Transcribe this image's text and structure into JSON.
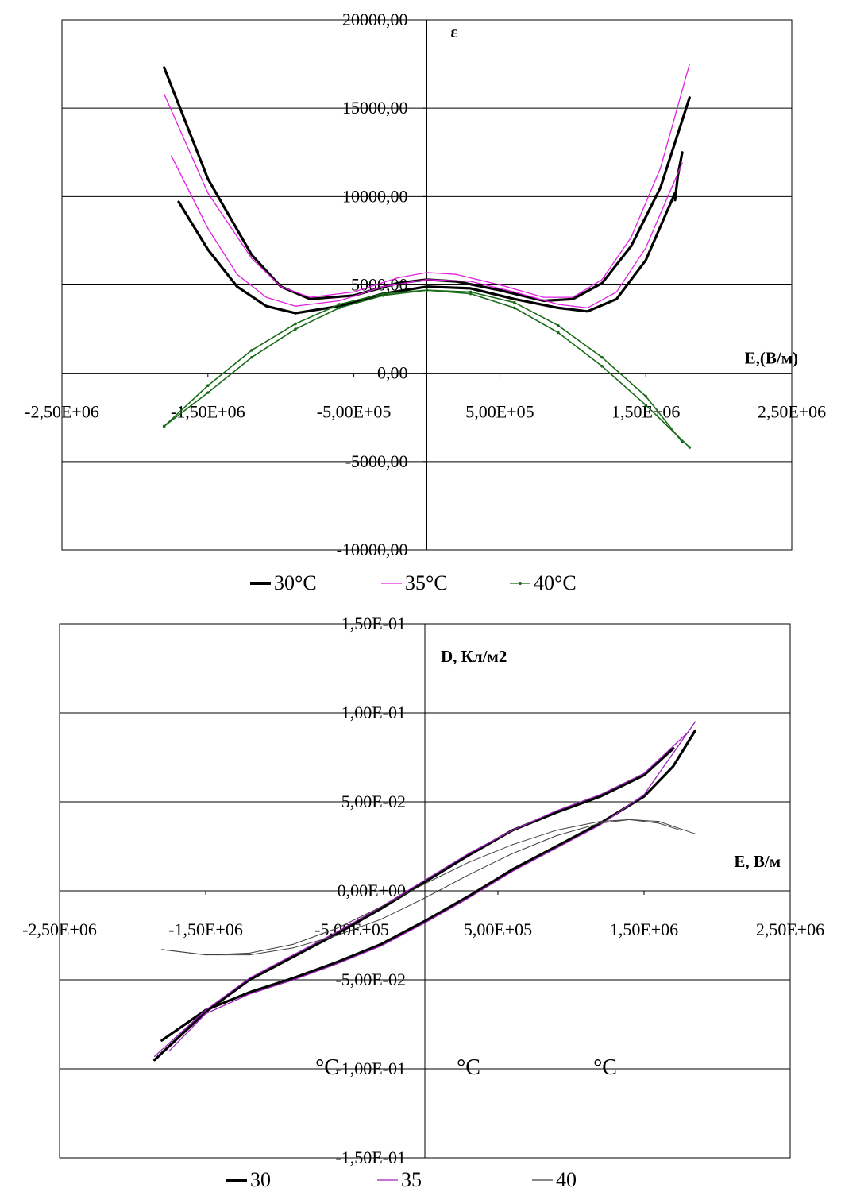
{
  "chart_data": [
    {
      "type": "line",
      "title": "",
      "xlabel": "E,(В/м)",
      "ylabel": "ε",
      "xlim": [
        -2500000,
        2500000
      ],
      "ylim": [
        -10000,
        20000
      ],
      "x_ticks": [
        -2500000,
        -1500000,
        -500000,
        500000,
        1500000,
        2500000
      ],
      "x_tick_labels": [
        "-2,50E+06",
        "-1,50E+06",
        "-5,00E+05",
        "5,00E+05",
        "1,50E+06",
        "2,50E+06"
      ],
      "y_ticks": [
        -10000,
        -5000,
        0,
        5000,
        10000,
        15000,
        20000
      ],
      "y_tick_labels": [
        "-10000,00",
        "-5000,00",
        "0,00",
        "5000,00",
        "10000,00",
        "15000,00",
        "20000,00"
      ],
      "grid": "horizontal",
      "legend_position": "bottom",
      "series": [
        {
          "name": "30°C",
          "color": "#000000",
          "style": "thick",
          "branches": [
            {
              "x": [
                -1800000,
                -1500000,
                -1200000,
                -1000000,
                -800000,
                -500000,
                -200000,
                0,
                200000,
                500000,
                800000,
                1000000,
                1200000,
                1400000,
                1600000,
                1800000
              ],
              "y": [
                17300,
                11000,
                6700,
                4900,
                4200,
                4400,
                5100,
                5300,
                5200,
                4700,
                4100,
                4200,
                5100,
                7200,
                10500,
                15600
              ]
            },
            {
              "x": [
                -1700000,
                -1500000,
                -1300000,
                -1100000,
                -900000,
                -600000,
                -300000,
                0,
                300000,
                600000,
                900000,
                1100000,
                1300000,
                1500000,
                1700000
              ],
              "y": [
                9700,
                7000,
                4900,
                3800,
                3400,
                3800,
                4500,
                4900,
                4800,
                4200,
                3700,
                3500,
                4200,
                6400,
                10200
              ]
            },
            {
              "x": [
                1700000,
                1720000,
                1750000
              ],
              "y": [
                9800,
                11200,
                12500
              ]
            }
          ]
        },
        {
          "name": "35°C",
          "color": "#e020e0",
          "style": "thin",
          "branches": [
            {
              "x": [
                -1800000,
                -1500000,
                -1200000,
                -1000000,
                -800000,
                -500000,
                -200000,
                0,
                200000,
                500000,
                800000,
                1000000,
                1200000,
                1400000,
                1600000,
                1800000
              ],
              "y": [
                15800,
                10200,
                6500,
                4900,
                4300,
                4600,
                5400,
                5700,
                5600,
                5000,
                4300,
                4300,
                5300,
                7700,
                11600,
                17500
              ]
            },
            {
              "x": [
                -1750000,
                -1500000,
                -1300000,
                -1100000,
                -900000,
                -600000,
                -300000,
                0,
                300000,
                600000,
                900000,
                1100000,
                1300000,
                1500000,
                1750000
              ],
              "y": [
                12300,
                8200,
                5600,
                4300,
                3800,
                4100,
                4900,
                5300,
                5200,
                4600,
                3900,
                3700,
                4600,
                7100,
                11900
              ]
            }
          ]
        },
        {
          "name": "40°C",
          "color": "#1a6b1a",
          "style": "marker",
          "branches": [
            {
              "x": [
                -1800000,
                -1500000,
                -1200000,
                -900000,
                -600000,
                -300000,
                0,
                300000,
                600000,
                900000,
                1200000,
                1500000,
                1800000
              ],
              "y": [
                -3000,
                -700,
                1300,
                2800,
                3900,
                4500,
                4700,
                4500,
                3700,
                2300,
                400,
                -1800,
                -4200
              ]
            },
            {
              "x": [
                -1800000,
                -1500000,
                -1200000,
                -900000,
                -600000,
                -300000,
                0,
                300000,
                600000,
                900000,
                1200000,
                1500000,
                1750000
              ],
              "y": [
                -3000,
                -1100,
                900,
                2500,
                3700,
                4400,
                4700,
                4600,
                4000,
                2700,
                900,
                -1300,
                -3900
              ]
            }
          ]
        }
      ]
    },
    {
      "type": "line",
      "title": "",
      "xlabel": "E, В/м",
      "ylabel": "D, Кл/м2",
      "xlim": [
        -2500000,
        2500000
      ],
      "ylim": [
        -0.15,
        0.15
      ],
      "x_ticks": [
        -2500000,
        -1500000,
        -500000,
        500000,
        1500000,
        2500000
      ],
      "x_tick_labels": [
        "-2,50E+06",
        "-1,50E+06",
        "-5,00E+05",
        "5,00E+05",
        "1,50E+06",
        "2,50E+06"
      ],
      "y_ticks": [
        -0.15,
        -0.1,
        -0.05,
        0,
        0.05,
        0.1,
        0.15
      ],
      "y_tick_labels": [
        "-1,50E-01",
        "-1,00E-01",
        "-5,00E-02",
        "0,00E+00",
        "5,00E-02",
        "1,00E-01",
        "1,50E-01"
      ],
      "grid": "horizontal",
      "legend_position": "bottom",
      "stray_labels": [
        "°C",
        "°C",
        "°C"
      ],
      "series": [
        {
          "name": "30",
          "color": "#000000",
          "style": "thick",
          "branches": [
            {
              "x": [
                -1850000,
                -1500000,
                -1200000,
                -900000,
                -600000,
                -300000,
                0,
                300000,
                600000,
                900000,
                1200000,
                1500000,
                1700000
              ],
              "y": [
                -0.095,
                -0.068,
                -0.05,
                -0.037,
                -0.024,
                -0.01,
                0.005,
                0.02,
                0.034,
                0.044,
                0.053,
                0.065,
                0.08
              ]
            },
            {
              "x": [
                -1800000,
                -1500000,
                -1200000,
                -900000,
                -600000,
                -300000,
                0,
                300000,
                600000,
                900000,
                1200000,
                1500000,
                1700000,
                1850000
              ],
              "y": [
                -0.084,
                -0.067,
                -0.057,
                -0.049,
                -0.04,
                -0.03,
                -0.017,
                -0.003,
                0.012,
                0.025,
                0.038,
                0.053,
                0.07,
                0.09
              ]
            }
          ]
        },
        {
          "name": "35",
          "color": "#a020c0",
          "style": "thin",
          "branches": [
            {
              "x": [
                -1850000,
                -1500000,
                -1200000,
                -900000,
                -600000,
                -300000,
                0,
                300000,
                600000,
                900000,
                1200000,
                1500000,
                1800000
              ],
              "y": [
                -0.093,
                -0.067,
                -0.049,
                -0.036,
                -0.023,
                -0.009,
                0.006,
                0.021,
                0.034,
                0.045,
                0.054,
                0.066,
                0.089
              ]
            },
            {
              "x": [
                -1750000,
                -1500000,
                -1200000,
                -900000,
                -600000,
                -300000,
                0,
                300000,
                600000,
                900000,
                1200000,
                1500000,
                1850000
              ],
              "y": [
                -0.09,
                -0.069,
                -0.058,
                -0.05,
                -0.041,
                -0.031,
                -0.018,
                -0.004,
                0.011,
                0.024,
                0.037,
                0.054,
                0.095
              ]
            }
          ]
        },
        {
          "name": "40",
          "color": "#404040",
          "style": "hairline",
          "branches": [
            {
              "x": [
                -1800000,
                -1500000,
                -1200000,
                -900000,
                -600000,
                -300000,
                0,
                300000,
                600000,
                900000,
                1200000,
                1400000,
                1600000,
                1850000
              ],
              "y": [
                -0.033,
                -0.036,
                -0.036,
                -0.032,
                -0.025,
                -0.016,
                -0.004,
                0.009,
                0.021,
                0.031,
                0.038,
                0.04,
                0.039,
                0.032
              ]
            },
            {
              "x": [
                -1800000,
                -1500000,
                -1200000,
                -900000,
                -600000,
                -300000,
                0,
                300000,
                600000,
                900000,
                1200000,
                1400000,
                1600000,
                1750000
              ],
              "y": [
                -0.033,
                -0.036,
                -0.035,
                -0.03,
                -0.021,
                -0.009,
                0.004,
                0.016,
                0.026,
                0.034,
                0.039,
                0.04,
                0.038,
                0.034
              ]
            }
          ]
        }
      ]
    }
  ]
}
